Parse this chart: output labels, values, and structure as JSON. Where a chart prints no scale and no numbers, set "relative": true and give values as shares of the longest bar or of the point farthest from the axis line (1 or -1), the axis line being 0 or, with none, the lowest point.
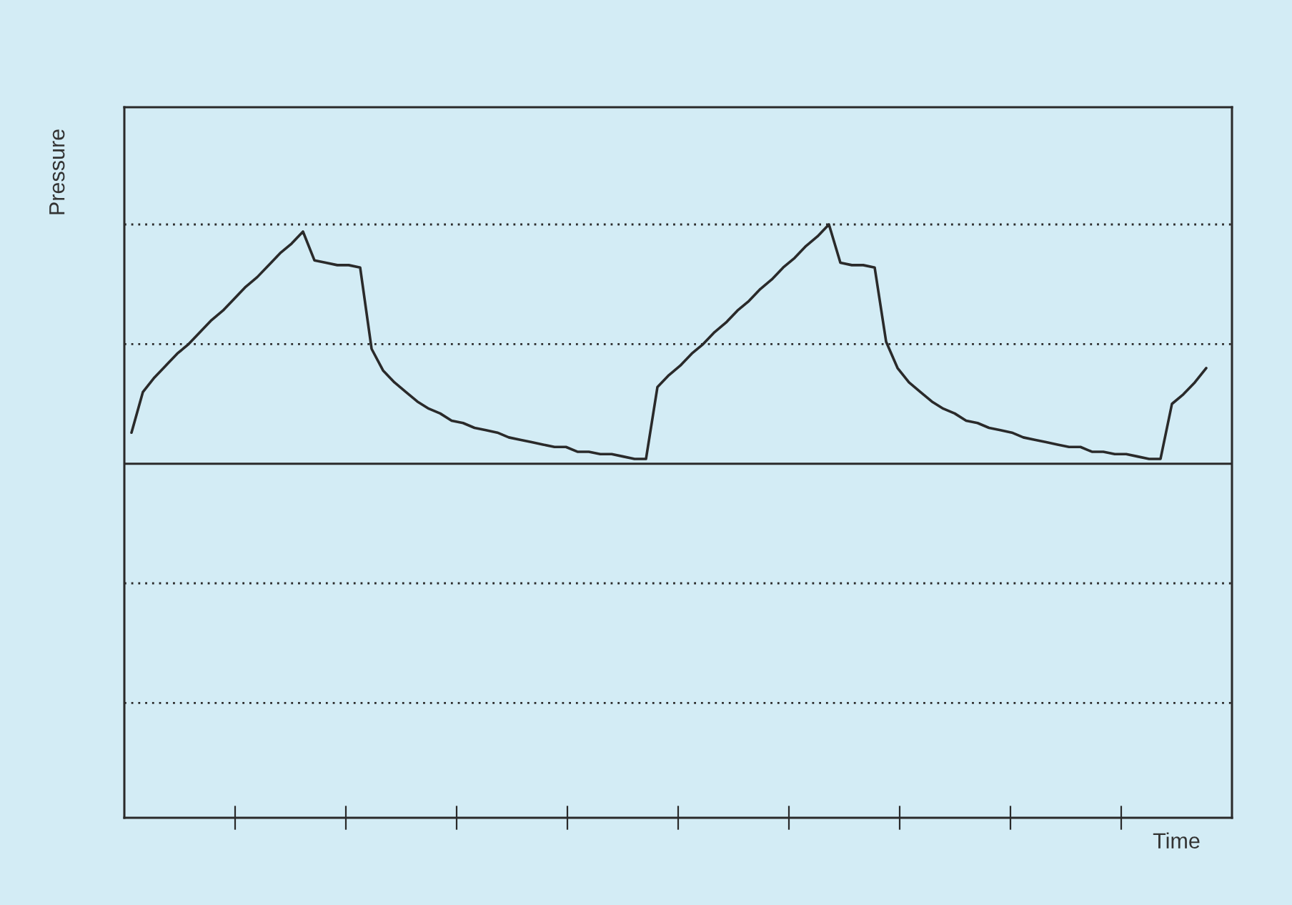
{
  "chart_data": {
    "type": "line",
    "relative": true,
    "annotations": [
      "Time"
    ],
    "ylabel": "Pressure",
    "ref_lines": [
      {
        "axis": "y",
        "value": 1,
        "line_style": "dotted"
      },
      {
        "axis": "y",
        "value": 0.5,
        "line_style": "dotted"
      },
      {
        "axis": "y",
        "value": -0.5,
        "line_style": "dotted"
      },
      {
        "axis": "y",
        "value": -1,
        "line_style": "dotted"
      }
    ],
    "line_style": "solid",
    "marker": "none",
    "categories": [
      null,
      null,
      null,
      null,
      null,
      null,
      null,
      null,
      null,
      null,
      null,
      null,
      null,
      null,
      null,
      null,
      null,
      null,
      null,
      null,
      null,
      null,
      null,
      null,
      null,
      null,
      null,
      null,
      null,
      null,
      null,
      null,
      null,
      null,
      null,
      null,
      null,
      null,
      null,
      null,
      null,
      null,
      null,
      null,
      null,
      null,
      null,
      null,
      null,
      null,
      null,
      null,
      null,
      null,
      null,
      null,
      null,
      null,
      null,
      null,
      null,
      null,
      null,
      null,
      null,
      null,
      null,
      null,
      null,
      null,
      null,
      null,
      null,
      null,
      null,
      null,
      null,
      null,
      null,
      null,
      null,
      null,
      null,
      null,
      null,
      null,
      null,
      null,
      null,
      null,
      null,
      null,
      null,
      null,
      null
    ],
    "series": [
      {
        "color": "#2a2a2a",
        "values": [
          0.13,
          0.3,
          0.36,
          0.41,
          0.46,
          0.5,
          0.55,
          0.6,
          0.64,
          0.69,
          0.74,
          0.78,
          0.83,
          0.88,
          0.92,
          0.97,
          0.85,
          0.84,
          0.83,
          0.83,
          0.82,
          0.48,
          0.39,
          0.34,
          0.3,
          0.26,
          0.23,
          0.21,
          0.18,
          0.17,
          0.15,
          0.14,
          0.13,
          0.11,
          0.1,
          0.09,
          0.08,
          0.07,
          0.07,
          0.05,
          0.05,
          0.04,
          0.04,
          0.03,
          0.02,
          0.02,
          0.32,
          0.37,
          0.41,
          0.46,
          0.5,
          0.55,
          0.59,
          0.64,
          0.68,
          0.73,
          0.77,
          0.82,
          0.86,
          0.91,
          0.95,
          1.0,
          0.84,
          0.83,
          0.83,
          0.82,
          0.51,
          0.4,
          0.34,
          0.3,
          0.26,
          0.23,
          0.21,
          0.18,
          0.17,
          0.15,
          0.14,
          0.13,
          0.11,
          0.1,
          0.09,
          0.08,
          0.07,
          0.07,
          0.05,
          0.05,
          0.04,
          0.04,
          0.03,
          0.02,
          0.02,
          0.25,
          0.29,
          0.34,
          0.4
        ]
      }
    ]
  }
}
